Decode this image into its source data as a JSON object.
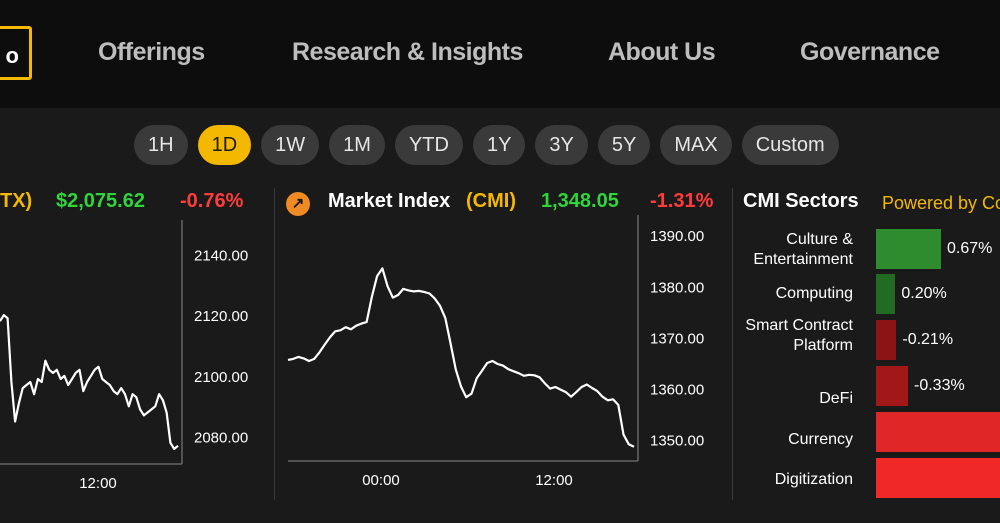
{
  "nav": {
    "logo_text": "o",
    "items": [
      "Offerings",
      "Research & Insights",
      "About Us",
      "Governance"
    ]
  },
  "ranges": {
    "items": [
      "1H",
      "1D",
      "1W",
      "1M",
      "YTD",
      "1Y",
      "3Y",
      "5Y",
      "MAX",
      "Custom"
    ],
    "active": "1D"
  },
  "colors": {
    "accent": "#f5b800",
    "up": "#31d43a",
    "down": "#ff3b3b"
  },
  "left_chart": {
    "ticker_suffix": "TX)",
    "price": "$2,075.62",
    "change": "-0.76%"
  },
  "mid_chart": {
    "icon": "compass-icon",
    "name": "Market Index ",
    "ticker": "(CMI)",
    "price": "1,348.05",
    "change": "-1.31%"
  },
  "sectors_panel": {
    "title": "CMI Sectors",
    "powered_by": "Powered by Co"
  },
  "chart_data": [
    {
      "type": "line",
      "title": "",
      "x_tick_labels": [
        "12:00"
      ],
      "y_tick_labels": [
        "2140.00",
        "2120.00",
        "2100.00",
        "2080.00"
      ],
      "ylim": [
        2073,
        2148
      ],
      "series": [
        {
          "values": [
            2118,
            2120,
            2119,
            2098,
            2085,
            2091,
            2096,
            2097,
            2098,
            2094,
            2099,
            2098,
            2105,
            2102,
            2101,
            2102,
            2099,
            2100,
            2097,
            2099,
            2101,
            2102,
            2095,
            2098,
            2100,
            2102,
            2103,
            2099,
            2098,
            2097,
            2095,
            2094,
            2096,
            2094,
            2090,
            2094,
            2093,
            2089,
            2087,
            2088,
            2089,
            2090,
            2094,
            2092,
            2088,
            2078,
            2076,
            2077
          ]
        }
      ]
    },
    {
      "type": "line",
      "title": "",
      "x_tick_labels": [
        "00:00",
        "12:00"
      ],
      "y_tick_labels": [
        "1390.00",
        "1380.00",
        "1370.00",
        "1360.00",
        "1350.00"
      ],
      "ylim": [
        1347,
        1392
      ],
      "series": [
        {
          "values": [
            1365.6,
            1365.8,
            1366.2,
            1365.9,
            1365.4,
            1365.8,
            1367.1,
            1368.6,
            1370.0,
            1371.2,
            1371.4,
            1372.0,
            1371.6,
            1372.3,
            1372.7,
            1373.0,
            1378.0,
            1382.0,
            1383.5,
            1380.0,
            1377.8,
            1378.3,
            1379.5,
            1379.2,
            1379.0,
            1379.1,
            1378.9,
            1378.6,
            1377.6,
            1376.2,
            1373.8,
            1368.9,
            1363.7,
            1360.4,
            1358.3,
            1359.0,
            1362.0,
            1363.5,
            1365.0,
            1365.4,
            1364.8,
            1364.5,
            1363.8,
            1363.4,
            1363.0,
            1362.5,
            1362.7,
            1362.6,
            1362.2,
            1361.0,
            1360.0,
            1360.3,
            1359.8,
            1359.3,
            1358.4,
            1359.3,
            1360.3,
            1360.8,
            1360.1,
            1359.5,
            1358.4,
            1357.7,
            1357.9,
            1356.8,
            1351.0,
            1349.1,
            1348.6
          ]
        }
      ]
    },
    {
      "type": "bar",
      "title": "CMI Sectors",
      "categories": [
        "Culture & Entertainment",
        "Computing",
        "Smart Contract Platform",
        "DeFi",
        "Currency",
        "Digitization"
      ],
      "value_labels": [
        "0.67%",
        "0.20%",
        "-0.21%",
        "-0.33%",
        "",
        ""
      ],
      "values": [
        0.67,
        0.2,
        -0.21,
        -0.33,
        null,
        null
      ]
    }
  ]
}
